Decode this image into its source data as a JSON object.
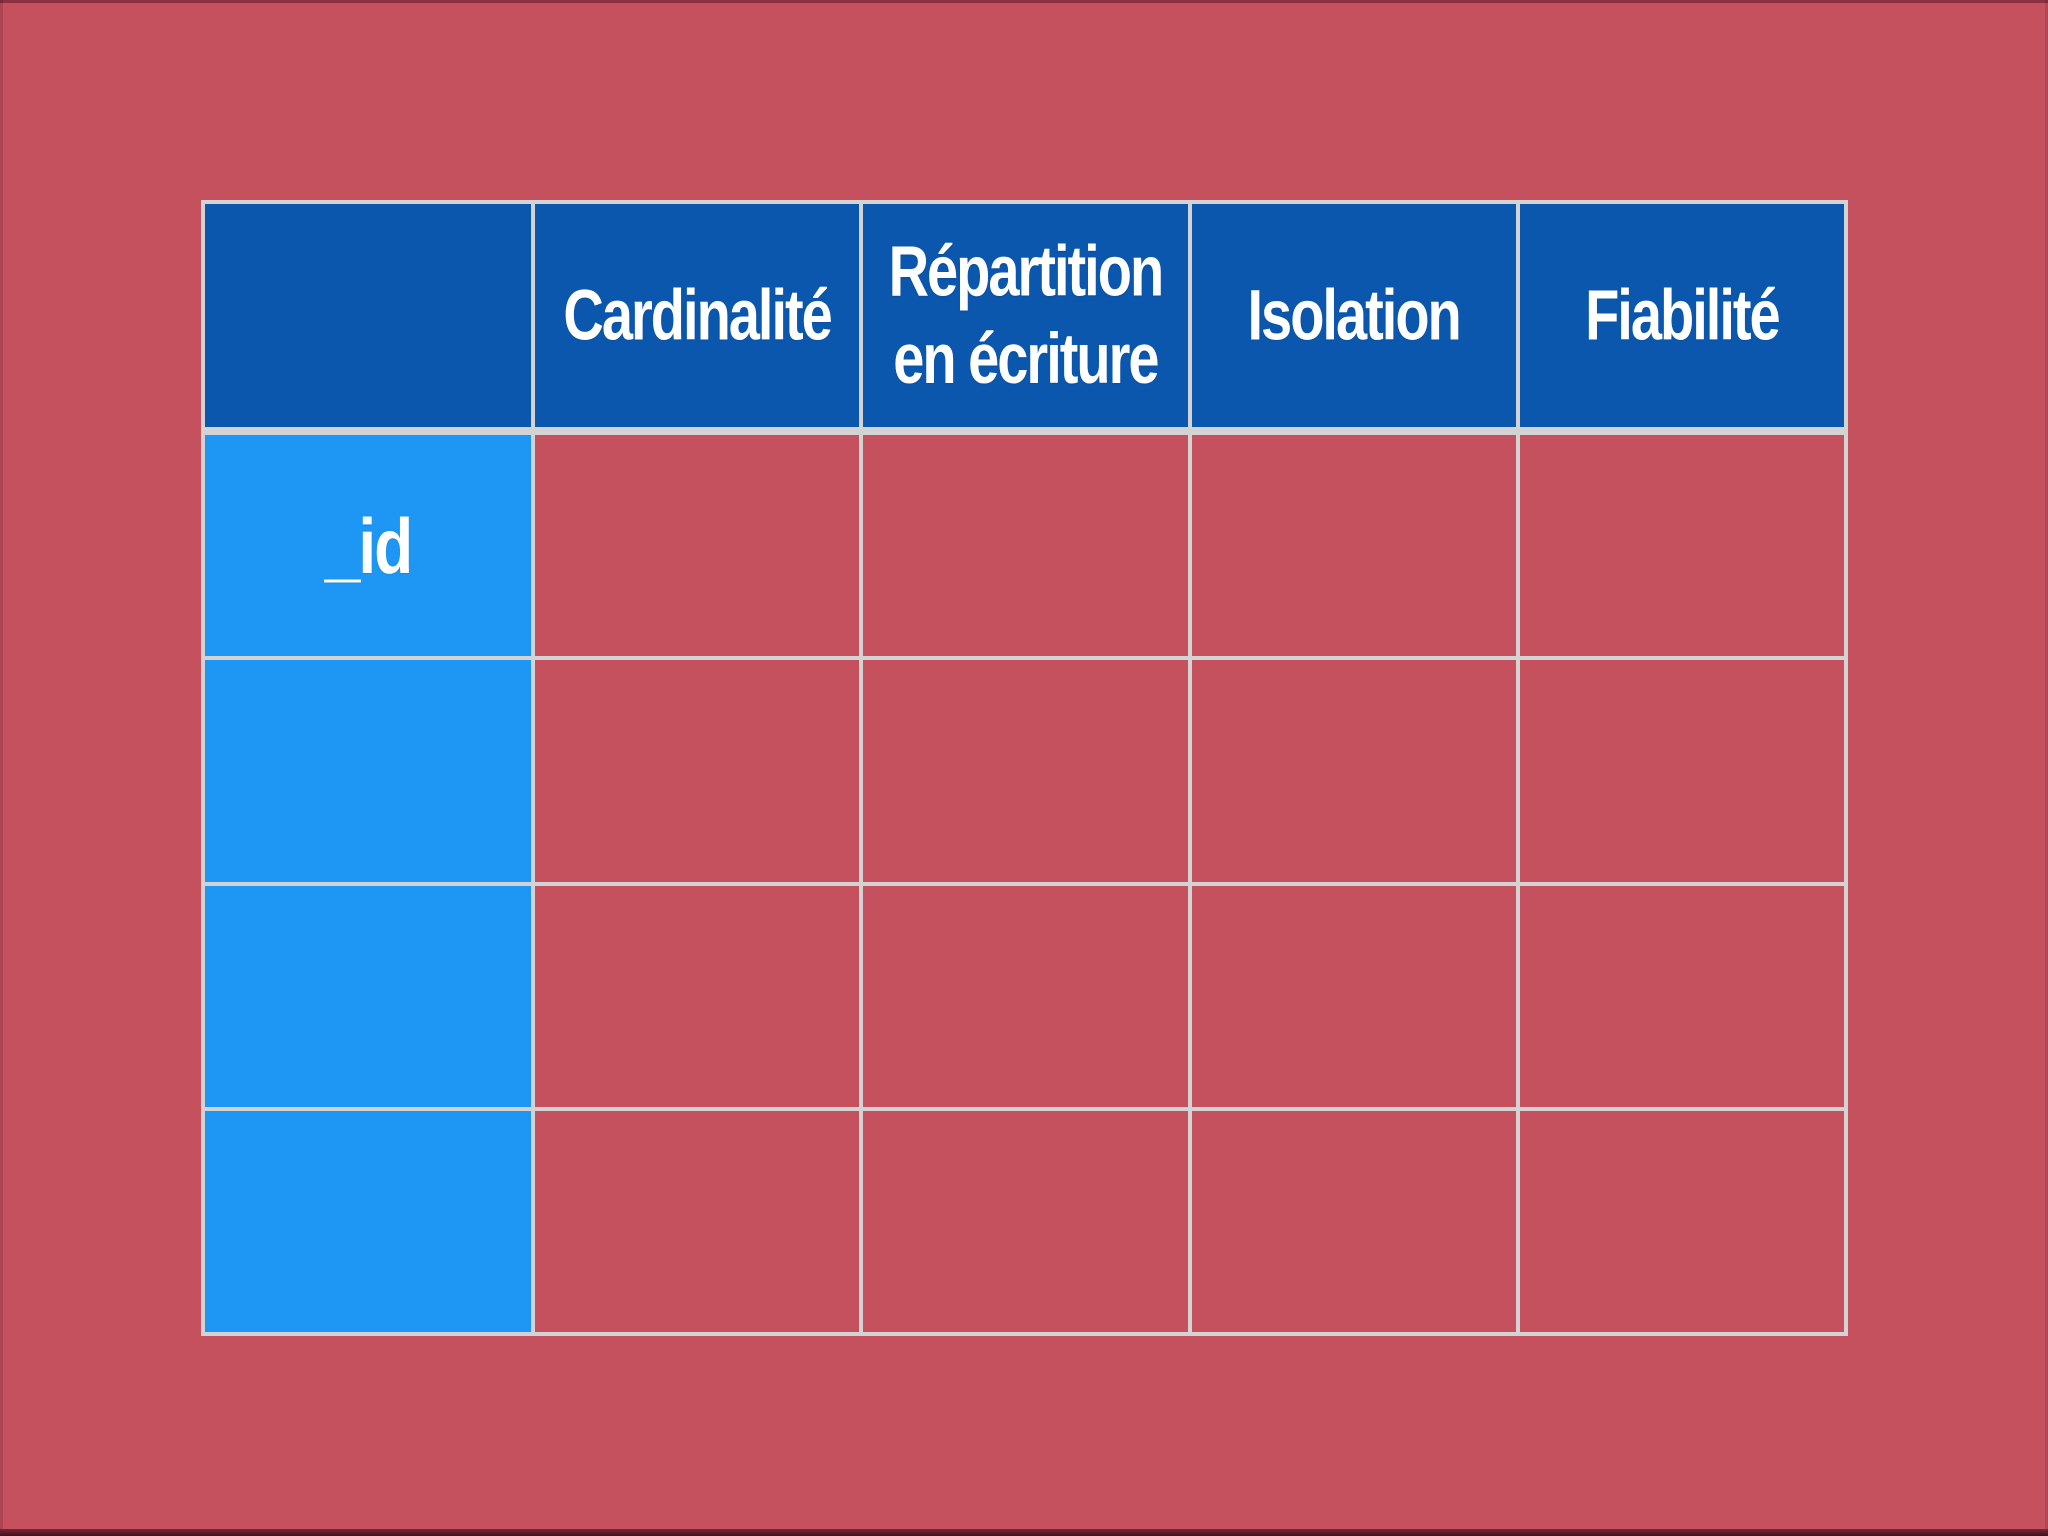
{
  "page": {
    "background_color": "#c5505e",
    "top_edge_color": "#8a3040",
    "bottom_edge_color": "#40101d"
  },
  "table": {
    "grid_color": "#d3d3d3",
    "header_bg_color": "#0b57ad",
    "row_header_bg_color": "#1d96f4",
    "body_cell_bg_color": "#c5505e",
    "text_color": "#ffffff",
    "columns": [
      "",
      "Cardinalité",
      "Répartition en écriture",
      "Isolation",
      "Fiabilité"
    ],
    "rows": [
      {
        "label": "_id",
        "cells": [
          "",
          "",
          "",
          ""
        ]
      },
      {
        "label": "",
        "cells": [
          "",
          "",
          "",
          ""
        ]
      },
      {
        "label": "",
        "cells": [
          "",
          "",
          "",
          ""
        ]
      },
      {
        "label": "",
        "cells": [
          "",
          "",
          "",
          ""
        ]
      }
    ]
  }
}
